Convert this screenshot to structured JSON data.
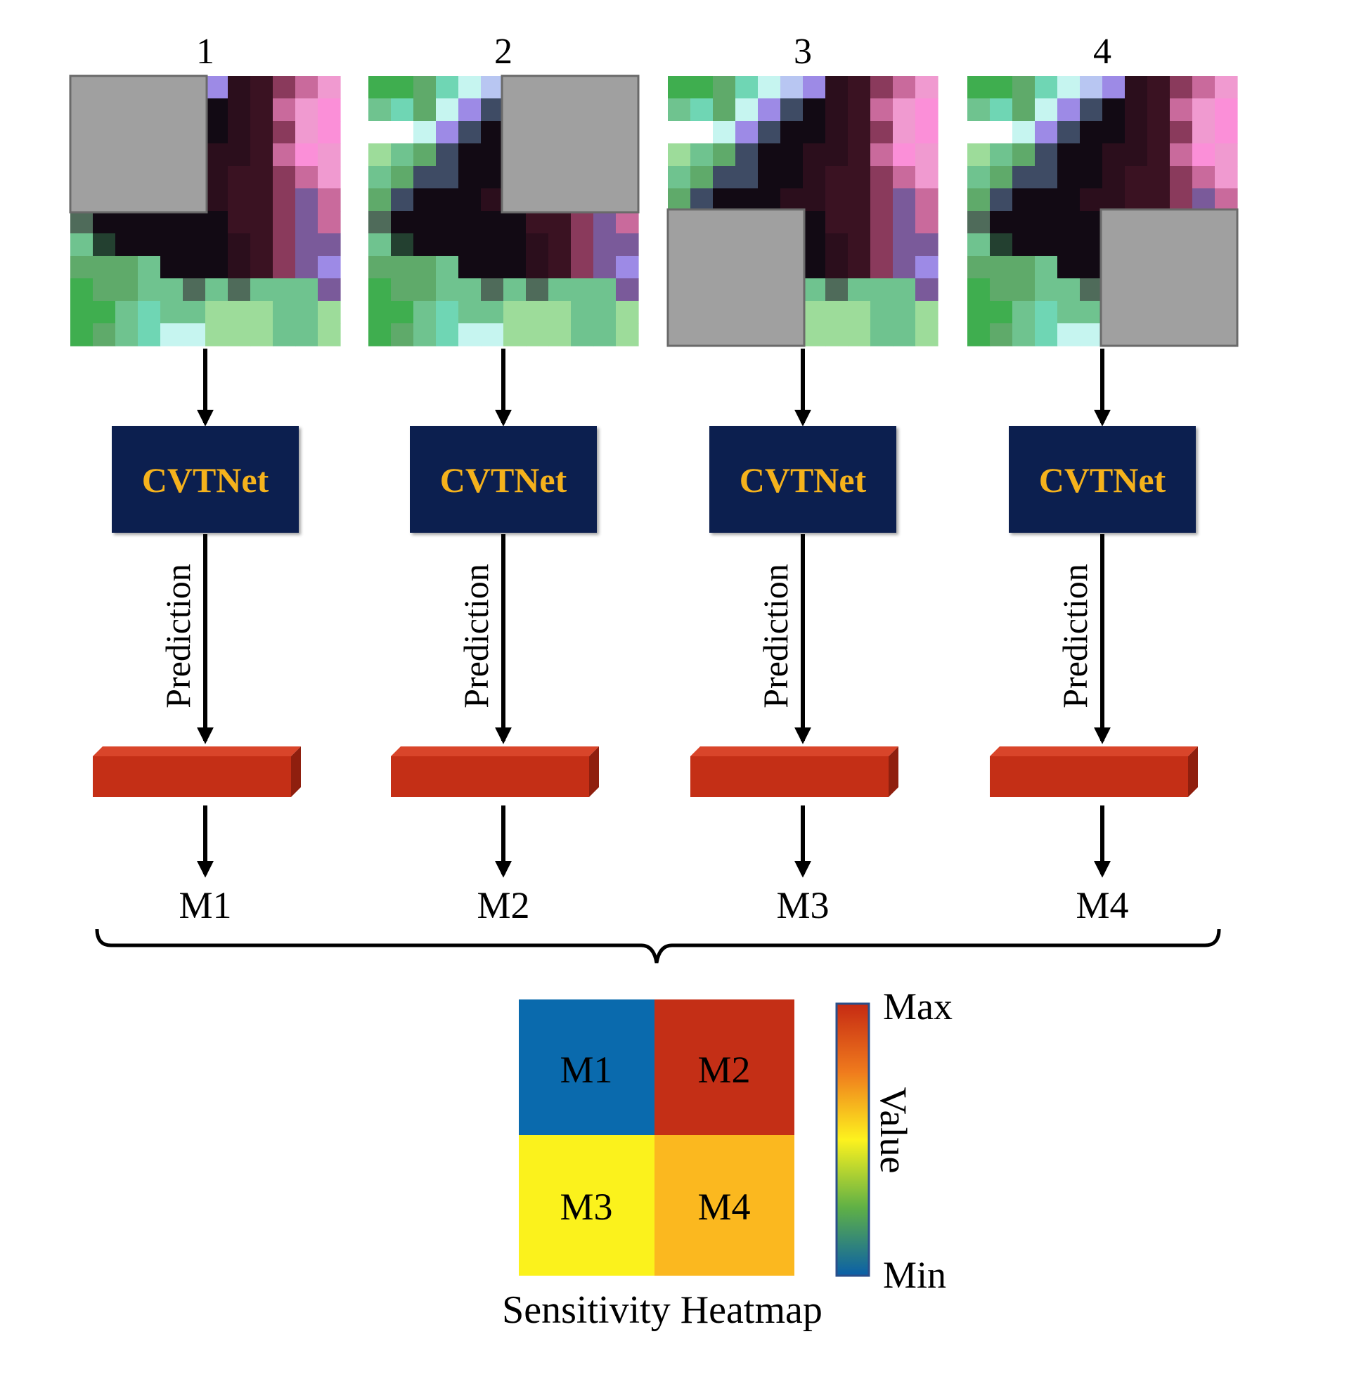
{
  "panels": [
    {
      "number": "1",
      "model_label": "CVTNet",
      "edge_label": "Prediction",
      "output_label": "M1",
      "occluded_quadrant": "top-left"
    },
    {
      "number": "2",
      "model_label": "CVTNet",
      "edge_label": "Prediction",
      "output_label": "M2",
      "occluded_quadrant": "top-right"
    },
    {
      "number": "3",
      "model_label": "CVTNet",
      "edge_label": "Prediction",
      "output_label": "M3",
      "occluded_quadrant": "bottom-left"
    },
    {
      "number": "4",
      "model_label": "CVTNet",
      "edge_label": "Prediction",
      "output_label": "M4",
      "occluded_quadrant": "bottom-right"
    }
  ],
  "heatmap": {
    "title": "Sensitivity Heatmap",
    "cells": [
      {
        "label": "M1",
        "color": "#0a6aad"
      },
      {
        "label": "M2",
        "color": "#c42f16"
      },
      {
        "label": "M3",
        "color": "#fbf21c"
      },
      {
        "label": "M4",
        "color": "#fbb81f"
      }
    ],
    "colorbar": {
      "max_label": "Max",
      "min_label": "Min",
      "axis_label": "Value"
    }
  },
  "colors": {
    "model_box": "#0c1f4f",
    "model_text": "#f5b21c",
    "occlusion_gray": "#a0a0a0",
    "prediction_block": "#c42f16"
  }
}
